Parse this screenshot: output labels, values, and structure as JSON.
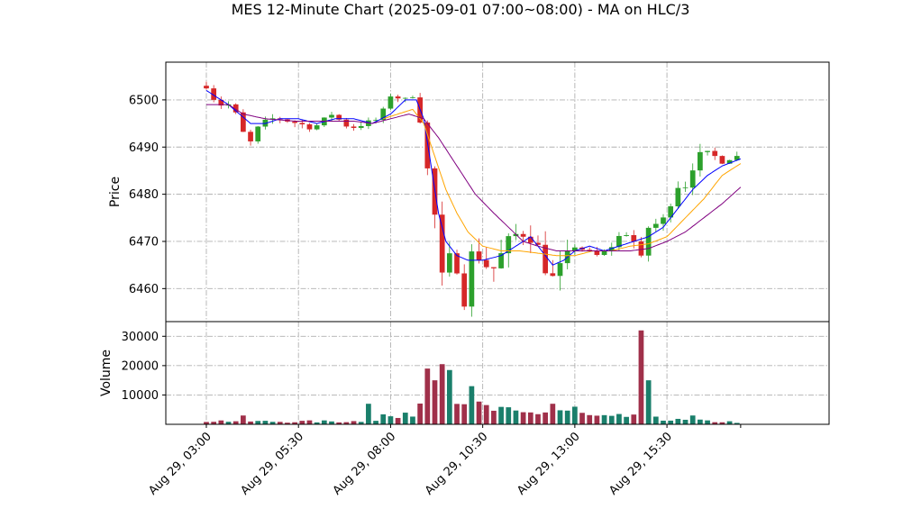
{
  "chart_data": {
    "type": "candlestick",
    "title": "MES 12-Minute Chart (2025-09-01 07:00~08:00) - MA on HLC/3",
    "price_panel": {
      "ylabel": "Price",
      "ylim": [
        6453,
        6508
      ],
      "yticks": [
        6460,
        6470,
        6480,
        6490,
        6500
      ],
      "grid": true
    },
    "volume_panel": {
      "ylabel": "Volume",
      "ylim": [
        0,
        35000
      ],
      "yticks": [
        10000,
        20000,
        30000
      ],
      "grid": true
    },
    "x_range_hours": [
      1.9,
      19.9
    ],
    "xticks": [
      {
        "label": "Aug 29, 03:00",
        "hour": 3
      },
      {
        "label": "Aug 29, 05:30",
        "hour": 5.5
      },
      {
        "label": "Aug 29, 08:00",
        "hour": 8
      },
      {
        "label": "Aug 29, 10:30",
        "hour": 10.5
      },
      {
        "label": "Aug 29, 13:00",
        "hour": 13
      },
      {
        "label": "Aug 29, 15:30",
        "hour": 15.5
      }
    ],
    "colors": {
      "up": "#2ca02c",
      "down": "#d62728",
      "ma_fast": "#0000ff",
      "ma_mid": "#ffa500",
      "ma_slow": "#800080",
      "vol_up": "#1a7f6b",
      "vol_down": "#a0304a"
    },
    "price_path": [
      [
        3.0,
        6503
      ],
      [
        3.3,
        6499
      ],
      [
        3.7,
        6499
      ],
      [
        4.0,
        6493
      ],
      [
        4.2,
        6491
      ],
      [
        4.4,
        6494
      ],
      [
        4.7,
        6496
      ],
      [
        5.0,
        6496
      ],
      [
        5.5,
        6495
      ],
      [
        5.9,
        6494
      ],
      [
        6.4,
        6497
      ],
      [
        6.9,
        6494
      ],
      [
        7.3,
        6495
      ],
      [
        7.7,
        6496
      ],
      [
        8.0,
        6501
      ],
      [
        8.4,
        6500
      ],
      [
        8.6,
        6501
      ],
      [
        8.9,
        6493
      ],
      [
        9.0,
        6485
      ],
      [
        9.15,
        6478
      ],
      [
        9.3,
        6470
      ],
      [
        9.4,
        6462
      ],
      [
        9.6,
        6466
      ],
      [
        9.8,
        6465
      ],
      [
        10.0,
        6458
      ],
      [
        10.2,
        6467
      ],
      [
        10.5,
        6467
      ],
      [
        10.7,
        6463
      ],
      [
        11.0,
        6467
      ],
      [
        11.3,
        6471
      ],
      [
        11.6,
        6472
      ],
      [
        11.9,
        6471
      ],
      [
        12.1,
        6466
      ],
      [
        12.4,
        6462
      ],
      [
        12.7,
        6465
      ],
      [
        13.0,
        6469
      ],
      [
        13.3,
        6468
      ],
      [
        13.6,
        6467
      ],
      [
        13.9,
        6468
      ],
      [
        14.2,
        6471
      ],
      [
        14.5,
        6472
      ],
      [
        14.8,
        6466
      ],
      [
        15.0,
        6473
      ],
      [
        15.3,
        6474
      ],
      [
        15.5,
        6475
      ],
      [
        15.7,
        6482
      ],
      [
        16.0,
        6482
      ],
      [
        16.2,
        6486
      ],
      [
        16.5,
        6489
      ],
      [
        16.8,
        6488
      ],
      [
        17.0,
        6487
      ],
      [
        17.3,
        6488
      ],
      [
        17.5,
        6488
      ]
    ],
    "ma_fast": [
      [
        3.0,
        6502
      ],
      [
        3.6,
        6499
      ],
      [
        4.2,
        6495
      ],
      [
        4.6,
        6495
      ],
      [
        5.0,
        6496
      ],
      [
        5.5,
        6496
      ],
      [
        6.0,
        6495
      ],
      [
        6.5,
        6496
      ],
      [
        7.0,
        6496
      ],
      [
        7.5,
        6495
      ],
      [
        8.0,
        6497
      ],
      [
        8.4,
        6500
      ],
      [
        8.7,
        6500
      ],
      [
        8.9,
        6496
      ],
      [
        9.1,
        6486
      ],
      [
        9.3,
        6476
      ],
      [
        9.5,
        6470
      ],
      [
        9.8,
        6467
      ],
      [
        10.1,
        6466
      ],
      [
        10.5,
        6466
      ],
      [
        11.0,
        6467
      ],
      [
        11.4,
        6469
      ],
      [
        11.8,
        6471
      ],
      [
        12.1,
        6468
      ],
      [
        12.4,
        6465
      ],
      [
        12.7,
        6466
      ],
      [
        13.0,
        6468
      ],
      [
        13.4,
        6469
      ],
      [
        13.8,
        6468
      ],
      [
        14.2,
        6469
      ],
      [
        14.6,
        6470
      ],
      [
        15.0,
        6471
      ],
      [
        15.4,
        6473
      ],
      [
        15.8,
        6477
      ],
      [
        16.2,
        6481
      ],
      [
        16.6,
        6484
      ],
      [
        17.0,
        6486
      ],
      [
        17.5,
        6487.5
      ]
    ],
    "ma_mid": [
      [
        7.8,
        6496
      ],
      [
        8.2,
        6497
      ],
      [
        8.6,
        6498
      ],
      [
        8.9,
        6495
      ],
      [
        9.2,
        6488
      ],
      [
        9.5,
        6481
      ],
      [
        9.8,
        6476
      ],
      [
        10.1,
        6472
      ],
      [
        10.5,
        6469
      ],
      [
        11.0,
        6468
      ],
      [
        11.5,
        6468
      ],
      [
        12.0,
        6467.5
      ],
      [
        12.5,
        6467
      ],
      [
        13.0,
        6467
      ],
      [
        13.5,
        6468
      ],
      [
        14.0,
        6468
      ],
      [
        14.5,
        6469
      ],
      [
        15.0,
        6469.5
      ],
      [
        15.5,
        6471
      ],
      [
        16.0,
        6475
      ],
      [
        16.5,
        6479
      ],
      [
        17.0,
        6484
      ],
      [
        17.5,
        6486.5
      ]
    ],
    "ma_slow": [
      [
        3.0,
        6499
      ],
      [
        3.6,
        6499
      ],
      [
        4.0,
        6497
      ],
      [
        4.6,
        6496
      ],
      [
        5.4,
        6495.5
      ],
      [
        6.2,
        6495.5
      ],
      [
        7.0,
        6495.5
      ],
      [
        7.5,
        6495
      ],
      [
        8.0,
        6496
      ],
      [
        8.5,
        6497
      ],
      [
        8.9,
        6496
      ],
      [
        9.3,
        6492
      ],
      [
        9.8,
        6486
      ],
      [
        10.3,
        6480
      ],
      [
        10.8,
        6476
      ],
      [
        11.2,
        6473
      ],
      [
        11.6,
        6470
      ],
      [
        12.0,
        6469
      ],
      [
        12.5,
        6468
      ],
      [
        13.0,
        6468
      ],
      [
        13.5,
        6468
      ],
      [
        14.0,
        6468
      ],
      [
        14.5,
        6468
      ],
      [
        15.0,
        6468.5
      ],
      [
        15.5,
        6470
      ],
      [
        16.0,
        6472
      ],
      [
        16.5,
        6475
      ],
      [
        17.0,
        6478
      ],
      [
        17.5,
        6481.5
      ]
    ],
    "volume_profile": [
      [
        3.0,
        1200
      ],
      [
        5.0,
        900
      ],
      [
        7.0,
        1000
      ],
      [
        7.6,
        1500
      ],
      [
        7.8,
        3000
      ],
      [
        8.3,
        2000
      ],
      [
        8.7,
        5000
      ],
      [
        9.0,
        13000
      ],
      [
        9.2,
        17000
      ],
      [
        9.5,
        14000
      ],
      [
        10.0,
        9000
      ],
      [
        10.5,
        5500
      ],
      [
        11.0,
        4500
      ],
      [
        11.5,
        3500
      ],
      [
        12.0,
        4000
      ],
      [
        12.5,
        5000
      ],
      [
        13.0,
        4000
      ],
      [
        13.5,
        2500
      ],
      [
        14.0,
        2200
      ],
      [
        14.5,
        2800
      ],
      [
        14.8,
        4500
      ],
      [
        15.0,
        9000
      ],
      [
        15.2,
        3000
      ],
      [
        15.5,
        1500
      ],
      [
        17.5,
        700
      ]
    ],
    "volume_spikes": [
      [
        3.9,
        3000
      ],
      [
        7.3,
        7000
      ],
      [
        8.9,
        12500
      ],
      [
        9.05,
        19000
      ],
      [
        9.2,
        15000
      ],
      [
        9.35,
        20500
      ],
      [
        9.5,
        18500
      ],
      [
        10.2,
        13000
      ],
      [
        12.4,
        7000
      ],
      [
        13.0,
        6000
      ],
      [
        14.75,
        13000
      ],
      [
        14.85,
        32000
      ],
      [
        14.95,
        15000
      ],
      [
        16.1,
        3000
      ]
    ]
  }
}
